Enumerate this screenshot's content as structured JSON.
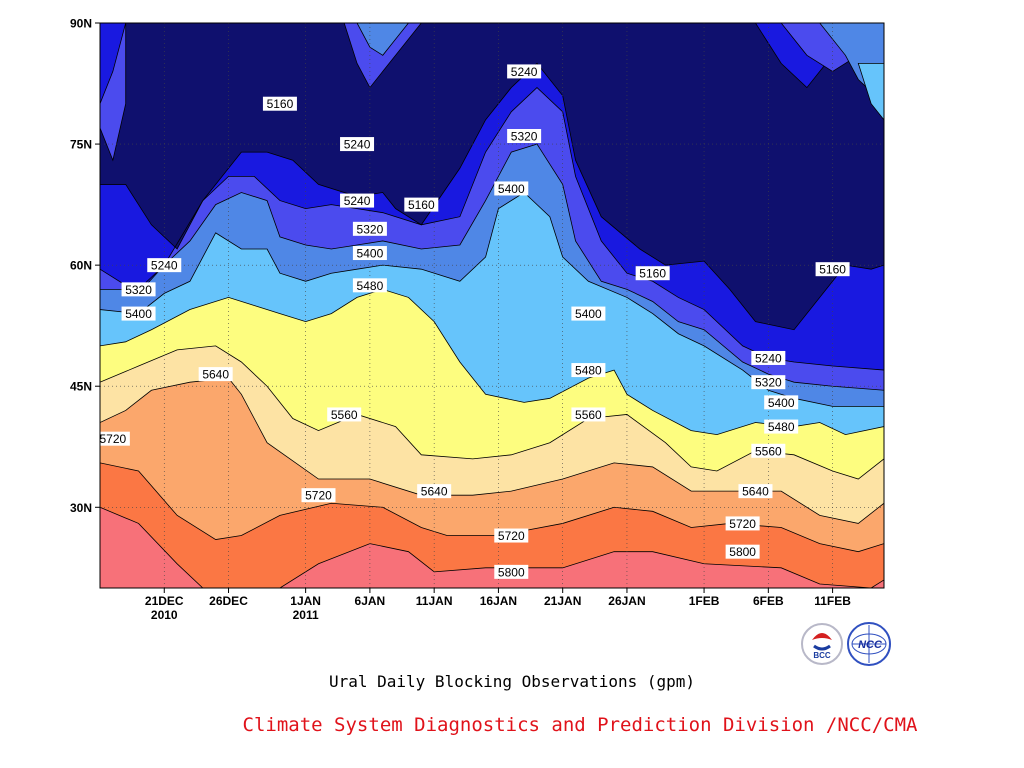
{
  "chart_data": {
    "type": "heatmap",
    "subtype": "filled-contour",
    "title": "Ural Daily Blocking Observations (gpm)",
    "credit": "Climate System Diagnostics and Prediction Division /NCC/CMA",
    "x_axis": {
      "ticks": [
        {
          "label": "21DEC",
          "sub": "2010",
          "day": 5
        },
        {
          "label": "26DEC",
          "sub": "",
          "day": 10
        },
        {
          "label": "1JAN",
          "sub": "2011",
          "day": 16
        },
        {
          "label": "6JAN",
          "sub": "",
          "day": 21
        },
        {
          "label": "11JAN",
          "sub": "",
          "day": 26
        },
        {
          "label": "16JAN",
          "sub": "",
          "day": 31
        },
        {
          "label": "21JAN",
          "sub": "",
          "day": 36
        },
        {
          "label": "26JAN",
          "sub": "",
          "day": 41
        },
        {
          "label": "1FEB",
          "sub": "",
          "day": 47
        },
        {
          "label": "6FEB",
          "sub": "",
          "day": 52
        },
        {
          "label": "11FEB",
          "sub": "",
          "day": 57
        }
      ],
      "range_days": [
        0,
        61
      ]
    },
    "y_axis": {
      "ticks": [
        {
          "label": "30N",
          "lat": 30
        },
        {
          "label": "45N",
          "lat": 45
        },
        {
          "label": "60N",
          "lat": 60
        },
        {
          "label": "75N",
          "lat": 75
        },
        {
          "label": "90N",
          "lat": 90
        }
      ],
      "range_lat": [
        20,
        90
      ]
    },
    "contour_levels": [
      5160,
      5240,
      5320,
      5400,
      5480,
      5560,
      5640,
      5720,
      5800
    ],
    "fill_colors": [
      {
        "band": "< 5160",
        "color": "#0f106e"
      },
      {
        "band": "5160-5240",
        "color": "#1919e0"
      },
      {
        "band": "5240-5320",
        "color": "#4b4bee"
      },
      {
        "band": "5320-5400",
        "color": "#4f87e6"
      },
      {
        "band": "5400-5480",
        "color": "#66c4fb"
      },
      {
        "band": "5480-5560",
        "color": "#fdfd7f"
      },
      {
        "band": "5560-5640",
        "color": "#fde3a4"
      },
      {
        "band": "5640-5720",
        "color": "#fba76c"
      },
      {
        "band": "5720-5800",
        "color": "#fb7744"
      },
      {
        "band": "> 5800",
        "color": "#f77179"
      }
    ],
    "contour_boundaries": [
      {
        "level": 5800,
        "points": [
          [
            0,
            30
          ],
          [
            3,
            28
          ],
          [
            6,
            23
          ],
          [
            8,
            20
          ],
          [
            14,
            20
          ],
          [
            17,
            23
          ],
          [
            21,
            25.5
          ],
          [
            24,
            24.5
          ],
          [
            26,
            22
          ],
          [
            30,
            22.5
          ],
          [
            36,
            22.5
          ],
          [
            40,
            24.5
          ],
          [
            43,
            24.5
          ],
          [
            47,
            23
          ],
          [
            53,
            22.5
          ],
          [
            56,
            20.5
          ],
          [
            60,
            20
          ],
          [
            61,
            21
          ]
        ]
      },
      {
        "level": 5720,
        "points": [
          [
            0,
            35.5
          ],
          [
            3,
            34.5
          ],
          [
            6,
            29
          ],
          [
            9,
            26
          ],
          [
            11,
            26.5
          ],
          [
            14,
            29
          ],
          [
            18,
            30.5
          ],
          [
            22,
            30
          ],
          [
            25,
            27.5
          ],
          [
            27,
            26.5
          ],
          [
            31,
            26.5
          ],
          [
            36,
            28
          ],
          [
            40,
            30
          ],
          [
            43,
            29.5
          ],
          [
            46,
            27.5
          ],
          [
            49,
            28
          ],
          [
            53,
            27.5
          ],
          [
            56,
            25.5
          ],
          [
            59,
            24.5
          ],
          [
            61,
            25.5
          ]
        ]
      },
      {
        "level": 5640,
        "points": [
          [
            0,
            40.5
          ],
          [
            2,
            42
          ],
          [
            4,
            44.5
          ],
          [
            7,
            45.5
          ],
          [
            10,
            46
          ],
          [
            11,
            44
          ],
          [
            13,
            38
          ],
          [
            17,
            33.5
          ],
          [
            21,
            33.5
          ],
          [
            25,
            31.5
          ],
          [
            29,
            31.5
          ],
          [
            32,
            32
          ],
          [
            36,
            33.5
          ],
          [
            40,
            35.5
          ],
          [
            43,
            35
          ],
          [
            46,
            32
          ],
          [
            49,
            32
          ],
          [
            53,
            32
          ],
          [
            56,
            29
          ],
          [
            59,
            28
          ],
          [
            61,
            30.5
          ]
        ]
      },
      {
        "level": 5560,
        "points": [
          [
            0,
            45.5
          ],
          [
            3,
            47.5
          ],
          [
            6,
            49.5
          ],
          [
            9,
            50
          ],
          [
            11,
            48
          ],
          [
            13,
            45
          ],
          [
            15,
            41
          ],
          [
            17,
            39.5
          ],
          [
            20,
            41.5
          ],
          [
            23,
            40
          ],
          [
            25,
            36.5
          ],
          [
            29,
            36
          ],
          [
            32,
            36.5
          ],
          [
            35,
            38
          ],
          [
            38,
            41
          ],
          [
            41,
            41.5
          ],
          [
            44,
            38
          ],
          [
            46,
            35
          ],
          [
            48,
            34.5
          ],
          [
            51,
            37
          ],
          [
            54,
            36.5
          ],
          [
            57,
            34.5
          ],
          [
            59,
            33.5
          ],
          [
            61,
            36
          ]
        ]
      },
      {
        "level": 5480,
        "points": [
          [
            0,
            50
          ],
          [
            2,
            50.5
          ],
          [
            4,
            52
          ],
          [
            7,
            54.5
          ],
          [
            10,
            56
          ],
          [
            12,
            55
          ],
          [
            14,
            54
          ],
          [
            16,
            53
          ],
          [
            18,
            54
          ],
          [
            20,
            56
          ],
          [
            22,
            57
          ],
          [
            24,
            56
          ],
          [
            26,
            53
          ],
          [
            28,
            48
          ],
          [
            30,
            44
          ],
          [
            33,
            43
          ],
          [
            35,
            43.5
          ],
          [
            38,
            46
          ],
          [
            40,
            47
          ],
          [
            41,
            44
          ],
          [
            43,
            42
          ],
          [
            46,
            39.5
          ],
          [
            48,
            39
          ],
          [
            51,
            40.5
          ],
          [
            54,
            40
          ],
          [
            56,
            40.5
          ],
          [
            58,
            39
          ],
          [
            61,
            40
          ]
        ]
      },
      {
        "level": 5400,
        "points": [
          [
            0,
            54.5
          ],
          [
            3,
            54
          ],
          [
            5,
            56.5
          ],
          [
            7,
            58
          ],
          [
            9,
            64
          ],
          [
            11,
            62
          ],
          [
            13,
            62
          ],
          [
            14,
            59
          ],
          [
            16,
            58
          ],
          [
            18,
            59
          ],
          [
            20,
            59.5
          ],
          [
            22,
            60
          ],
          [
            25,
            59.5
          ],
          [
            28,
            58
          ],
          [
            30,
            61
          ],
          [
            31,
            67
          ],
          [
            33,
            69
          ],
          [
            35,
            66
          ],
          [
            36,
            61
          ],
          [
            38,
            58
          ],
          [
            41,
            56
          ],
          [
            43,
            54
          ],
          [
            45,
            51.5
          ],
          [
            47,
            50
          ],
          [
            50,
            47
          ],
          [
            52,
            44.5
          ],
          [
            54,
            43.5
          ],
          [
            57,
            42.5
          ],
          [
            61,
            42.5
          ]
        ]
      },
      {
        "level": 5320,
        "points": [
          [
            0,
            57
          ],
          [
            3,
            57
          ],
          [
            5,
            60
          ],
          [
            7,
            63
          ],
          [
            9,
            67.5
          ],
          [
            11,
            69
          ],
          [
            13,
            68
          ],
          [
            14,
            63.5
          ],
          [
            16,
            62.5
          ],
          [
            18,
            62
          ],
          [
            20,
            62.5
          ],
          [
            22,
            63
          ],
          [
            25,
            62
          ],
          [
            28,
            62.5
          ],
          [
            30,
            68
          ],
          [
            32,
            74
          ],
          [
            34,
            75
          ],
          [
            36,
            70
          ],
          [
            37,
            63
          ],
          [
            39,
            58
          ],
          [
            41,
            57
          ],
          [
            43,
            55.5
          ],
          [
            45,
            53
          ],
          [
            47,
            52
          ],
          [
            50,
            48
          ],
          [
            52,
            46.5
          ],
          [
            54,
            45.5
          ],
          [
            57,
            45
          ],
          [
            61,
            44.5
          ]
        ]
      },
      {
        "level": 5240,
        "points": [
          [
            0,
            59.5
          ],
          [
            3,
            56.5
          ],
          [
            5,
            60
          ],
          [
            8,
            68
          ],
          [
            10,
            71
          ],
          [
            12,
            71
          ],
          [
            14,
            68
          ],
          [
            16,
            67
          ],
          [
            18,
            67.5
          ],
          [
            20,
            67
          ],
          [
            22,
            66.5
          ],
          [
            25,
            65
          ],
          [
            28,
            66
          ],
          [
            30,
            74
          ],
          [
            32,
            79
          ],
          [
            34,
            82
          ],
          [
            36,
            79
          ],
          [
            37,
            71
          ],
          [
            39,
            63
          ],
          [
            41,
            59
          ],
          [
            43,
            58
          ],
          [
            45,
            56
          ],
          [
            47,
            54.5
          ],
          [
            50,
            50
          ],
          [
            52,
            48.5
          ],
          [
            54,
            48
          ],
          [
            57,
            47.5
          ],
          [
            61,
            47
          ]
        ]
      },
      {
        "level": 5160,
        "points": [
          [
            0,
            70
          ],
          [
            2,
            70
          ],
          [
            4,
            65
          ],
          [
            6,
            62
          ],
          [
            8,
            68
          ],
          [
            11,
            74
          ],
          [
            13,
            74
          ],
          [
            15,
            73
          ],
          [
            17,
            70
          ],
          [
            20,
            68.5
          ],
          [
            22,
            69
          ],
          [
            23,
            67
          ],
          [
            25,
            65
          ],
          [
            28,
            72
          ],
          [
            30,
            78
          ],
          [
            32,
            82
          ],
          [
            34,
            85
          ],
          [
            36,
            81
          ],
          [
            37,
            73
          ],
          [
            39,
            66
          ],
          [
            42,
            62
          ],
          [
            44,
            60
          ],
          [
            47,
            60.5
          ],
          [
            49,
            57
          ],
          [
            51,
            53
          ],
          [
            54,
            52
          ],
          [
            57,
            58
          ],
          [
            58,
            60
          ],
          [
            60,
            59.5
          ],
          [
            61,
            60
          ]
        ]
      }
    ],
    "contour_labels": [
      {
        "text": "5160",
        "day": 14,
        "lat": 80
      },
      {
        "text": "5160",
        "day": 25,
        "lat": 67.5
      },
      {
        "text": "5160",
        "day": 43,
        "lat": 59
      },
      {
        "text": "5160",
        "day": 57,
        "lat": 59.5
      },
      {
        "text": "5240",
        "day": 5,
        "lat": 60
      },
      {
        "text": "5240",
        "day": 20,
        "lat": 75
      },
      {
        "text": "5240",
        "day": 20,
        "lat": 68
      },
      {
        "text": "5240",
        "day": 33,
        "lat": 84
      },
      {
        "text": "5240",
        "day": 52,
        "lat": 48.5
      },
      {
        "text": "5320",
        "day": 3,
        "lat": 57
      },
      {
        "text": "5320",
        "day": 21,
        "lat": 64.5
      },
      {
        "text": "5320",
        "day": 33,
        "lat": 76
      },
      {
        "text": "5320",
        "day": 52,
        "lat": 45.5
      },
      {
        "text": "5400",
        "day": 3,
        "lat": 54
      },
      {
        "text": "5400",
        "day": 21,
        "lat": 61.5
      },
      {
        "text": "5400",
        "day": 32,
        "lat": 69.5
      },
      {
        "text": "5400",
        "day": 38,
        "lat": 54
      },
      {
        "text": "5400",
        "day": 53,
        "lat": 43
      },
      {
        "text": "5480",
        "day": 21,
        "lat": 57.5
      },
      {
        "text": "5480",
        "day": 38,
        "lat": 47
      },
      {
        "text": "5480",
        "day": 53,
        "lat": 40
      },
      {
        "text": "5560",
        "day": 19,
        "lat": 41.5
      },
      {
        "text": "5560",
        "day": 38,
        "lat": 41.5
      },
      {
        "text": "5560",
        "day": 52,
        "lat": 37
      },
      {
        "text": "5640",
        "day": 9,
        "lat": 46.5
      },
      {
        "text": "5640",
        "day": 26,
        "lat": 32
      },
      {
        "text": "5640",
        "day": 51,
        "lat": 32
      },
      {
        "text": "5720",
        "day": 1,
        "lat": 38.5
      },
      {
        "text": "5720",
        "day": 17,
        "lat": 31.5
      },
      {
        "text": "5720",
        "day": 32,
        "lat": 26.5
      },
      {
        "text": "5720",
        "day": 50,
        "lat": 28
      },
      {
        "text": "5800",
        "day": 32,
        "lat": 22
      },
      {
        "text": "5800",
        "day": 50,
        "lat": 24.5
      }
    ],
    "grid": "dotted"
  },
  "logos": {
    "left": {
      "name": "bcc-logo",
      "text": "BCC"
    },
    "right": {
      "name": "ncc-logo",
      "text": "NCC"
    }
  }
}
